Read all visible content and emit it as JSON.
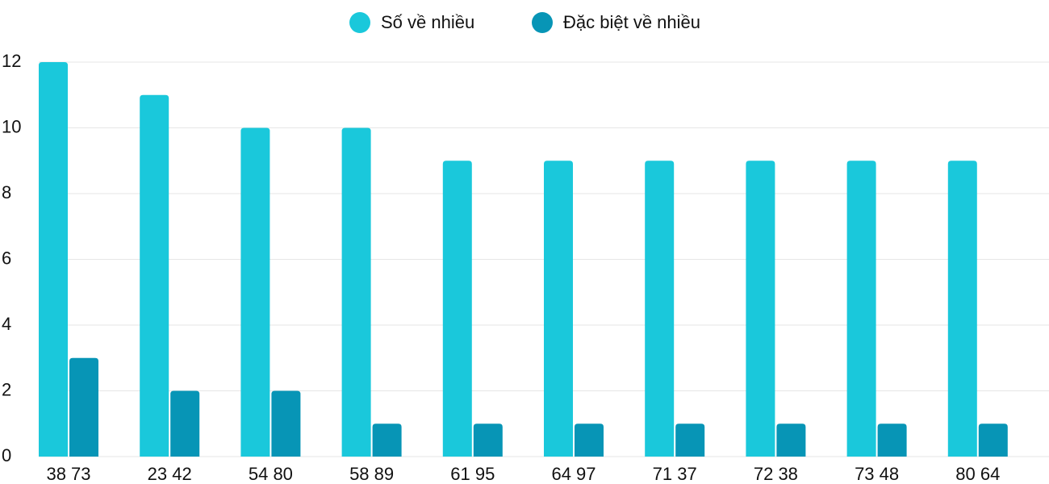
{
  "chart_data": {
    "type": "bar",
    "categories": [
      "38 73",
      "23 42",
      "54 80",
      "58 89",
      "61 95",
      "64 97",
      "71 37",
      "72 38",
      "73 48",
      "80 64"
    ],
    "series": [
      {
        "name": "Số về nhiều",
        "color": "#1ac8db",
        "values": [
          12,
          11,
          10,
          10,
          9,
          9,
          9,
          9,
          9,
          9
        ]
      },
      {
        "name": "Đặc biệt về nhiều",
        "color": "#0795b6",
        "values": [
          3,
          2,
          2,
          1,
          1,
          1,
          1,
          1,
          1,
          1
        ]
      }
    ],
    "ylim": [
      0,
      12
    ],
    "yticks": [
      0,
      2,
      4,
      6,
      8,
      10,
      12
    ],
    "grid": true,
    "legend": "top"
  }
}
